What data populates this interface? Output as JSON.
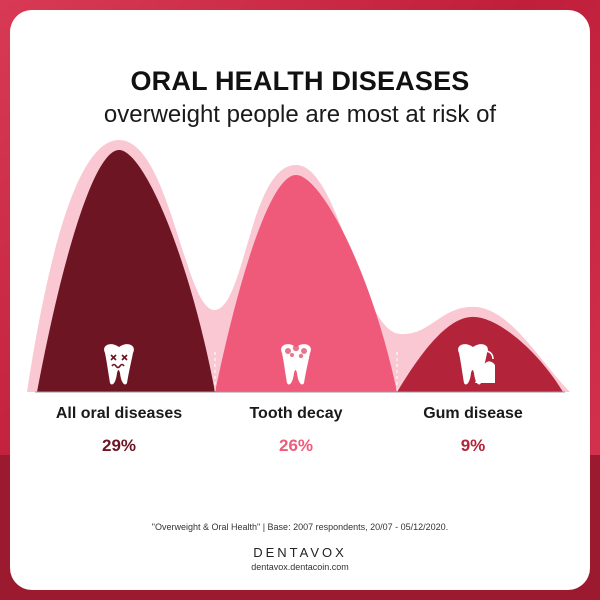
{
  "title": "ORAL HEALTH DISEASES",
  "subtitle": "overweight people are most at risk of",
  "chart_data": {
    "type": "area",
    "categories": [
      "All oral diseases",
      "Tooth decay",
      "Gum disease"
    ],
    "values": [
      29,
      26,
      9
    ],
    "value_labels": [
      "29%",
      "26%",
      "9%"
    ],
    "colors": [
      "#6e1524",
      "#ef5a7a",
      "#b3233a"
    ],
    "label_colors": [
      "#6e1524",
      "#ef5a7a",
      "#b3233a"
    ],
    "background_curve_color": "#f9c8d3",
    "icons": [
      "dead-tooth-icon",
      "decayed-tooth-icon",
      "gum-disease-tooth-icon"
    ]
  },
  "footer": {
    "source": "\"Overweight & Oral Health\" | Base: 2007 respondents, 20/07 - 05/12/2020.",
    "brand": "DENTAVOX",
    "url": "dentavox.dentacoin.com"
  }
}
